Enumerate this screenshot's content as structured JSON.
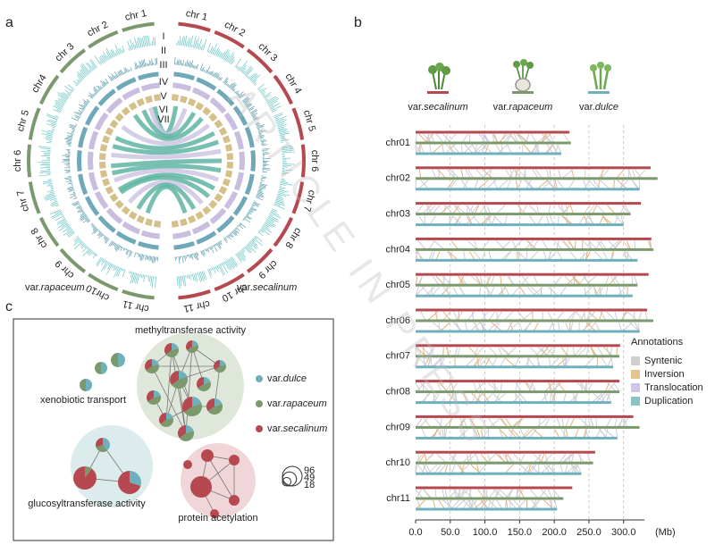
{
  "figure": {
    "panel_labels": [
      "a",
      "b",
      "c"
    ],
    "watermark": "ARTICLE IN PRESS"
  },
  "panel_a": {
    "left_label": "var.rapaceum",
    "right_label": "var.secalinum",
    "left_color": "#7a9a6e",
    "right_color": "#b5494f",
    "left_chromosomes": [
      "chr 1",
      "chr 2",
      "chr 3",
      "chr4",
      "chr 5",
      "chr 6",
      "chr 7",
      "chr 8",
      "chr 9",
      "chr10",
      "chr 11"
    ],
    "right_chromosomes": [
      "chr 1",
      "chr 2",
      "chr 3",
      "chr 4",
      "chr 5",
      "chr 6",
      "chr 7",
      "chr 8",
      "chr 9",
      "chr 10",
      "chr 11"
    ],
    "tracks": [
      "I",
      "II",
      "III",
      "IV",
      "V",
      "VI",
      "VII"
    ]
  },
  "chart_data": {
    "type": "bar",
    "orientation": "horizontal",
    "categories": [
      "chr01",
      "chr02",
      "chr03",
      "chr04",
      "chr05",
      "chr06",
      "chr07",
      "chr08",
      "chr09",
      "chr10",
      "chr11"
    ],
    "series": [
      {
        "name": "var.secalinum",
        "color": "#b5494f",
        "values": [
          222,
          339,
          325,
          340,
          336,
          334,
          295,
          294,
          314,
          259,
          226
        ]
      },
      {
        "name": "var.rapaceum",
        "color": "#7a9a6e",
        "values": [
          224,
          349,
          310,
          343,
          320,
          343,
          294,
          294,
          323,
          256,
          213
        ]
      },
      {
        "name": "var.dulce",
        "color": "#6fb0bd",
        "values": [
          210,
          323,
          300,
          320,
          313,
          323,
          285,
          282,
          291,
          239,
          204
        ]
      }
    ],
    "xlim": [
      0,
      330
    ],
    "xticks": [
      {
        "value": 0,
        "label": "0.0"
      },
      {
        "value": 50,
        "label": "50.0"
      },
      {
        "value": 100,
        "label": "100.0"
      },
      {
        "value": 150,
        "label": "150.0"
      },
      {
        "value": 200,
        "label": "200.0"
      },
      {
        "value": 250,
        "label": "250.0"
      },
      {
        "value": 300,
        "label": "300.0"
      }
    ],
    "x_unit": "(Mb)",
    "grid": true,
    "annotations": {
      "title": "Annotations",
      "items": [
        {
          "name": "Syntenic",
          "color": "#cfcfcf"
        },
        {
          "name": "Inversion",
          "color": "#e3c48f"
        },
        {
          "name": "Translocation",
          "color": "#cfc6e3"
        },
        {
          "name": "Duplication",
          "color": "#8cc3c3"
        }
      ]
    }
  },
  "panel_c": {
    "clusters": [
      "methyltransferase activity",
      "xenobiotic transport",
      "glucosyltransferase activity",
      "protein acetylation"
    ],
    "legend": [
      {
        "name": "var.dulce",
        "color": "#6fb0bd"
      },
      {
        "name": "var.rapaceum",
        "color": "#7a9a6e"
      },
      {
        "name": "var.secalinum",
        "color": "#b5494f"
      }
    ],
    "size_legend": [
      96,
      49,
      18
    ]
  }
}
